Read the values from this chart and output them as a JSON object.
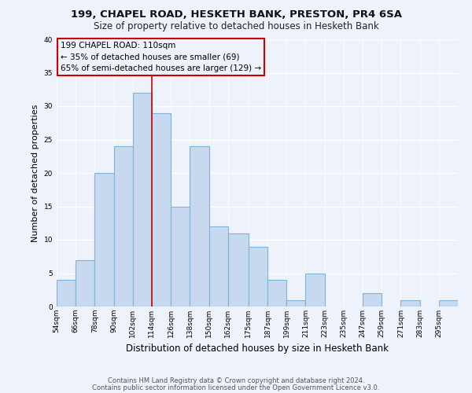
{
  "title_line1": "199, CHAPEL ROAD, HESKETH BANK, PRESTON, PR4 6SA",
  "title_line2": "Size of property relative to detached houses in Hesketh Bank",
  "xlabel": "Distribution of detached houses by size in Hesketh Bank",
  "ylabel": "Number of detached properties",
  "footer_line1": "Contains HM Land Registry data © Crown copyright and database right 2024.",
  "footer_line2": "Contains public sector information licensed under the Open Government Licence v3.0.",
  "bin_labels": [
    "54sqm",
    "66sqm",
    "78sqm",
    "90sqm",
    "102sqm",
    "114sqm",
    "126sqm",
    "138sqm",
    "150sqm",
    "162sqm",
    "175sqm",
    "187sqm",
    "199sqm",
    "211sqm",
    "223sqm",
    "235sqm",
    "247sqm",
    "259sqm",
    "271sqm",
    "283sqm",
    "295sqm"
  ],
  "bar_heights": [
    4,
    7,
    20,
    24,
    32,
    29,
    15,
    24,
    12,
    11,
    9,
    4,
    1,
    5,
    0,
    0,
    2,
    0,
    1,
    0,
    1
  ],
  "bar_color": "#c6d9ee",
  "bar_edge_color": "#7fb3d8",
  "annotation_box_text": "199 CHAPEL ROAD: 110sqm\n← 35% of detached houses are smaller (69)\n65% of semi-detached houses are larger (129) →",
  "annotation_box_edge_color": "#cc0000",
  "prop_line_color": "#cc0000",
  "ylim": [
    0,
    40
  ],
  "yticks": [
    0,
    5,
    10,
    15,
    20,
    25,
    30,
    35,
    40
  ],
  "bin_edges": [
    54,
    66,
    78,
    90,
    102,
    114,
    126,
    138,
    150,
    162,
    175,
    187,
    199,
    211,
    223,
    235,
    247,
    259,
    271,
    283,
    295,
    307
  ],
  "background_color": "#edf2fb",
  "grid_color": "#ffffff",
  "title1_fontsize": 9.5,
  "title2_fontsize": 8.5,
  "ylabel_fontsize": 8,
  "xlabel_fontsize": 8.5,
  "tick_fontsize": 6.5,
  "footer_fontsize": 6.0,
  "ann_fontsize": 7.5
}
